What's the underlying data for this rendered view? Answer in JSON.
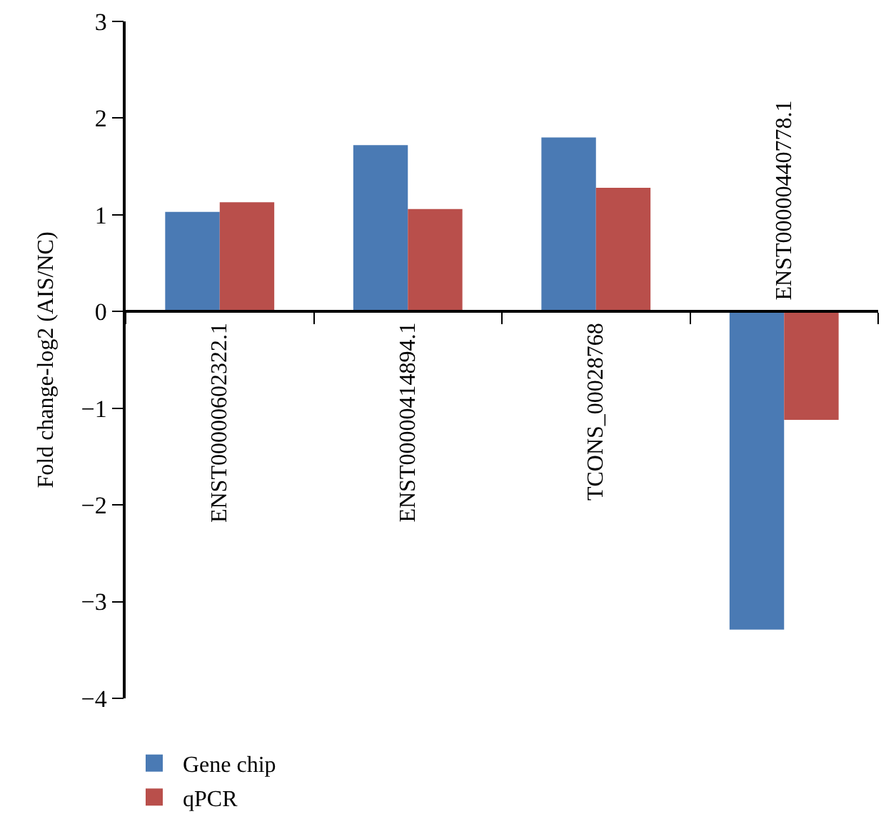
{
  "chart_data": {
    "type": "bar",
    "ylabel": "Fold change-log2 (AIS/NC)",
    "categories": [
      "ENST00000602322.1",
      "ENST00000414894.1",
      "TCONS_00028768",
      "ENST00000440778.1"
    ],
    "series": [
      {
        "name": "Gene chip",
        "color": "#4a7ab4",
        "values": [
          1.03,
          1.72,
          1.8,
          -3.29
        ]
      },
      {
        "name": "qPCR",
        "color": "#b94f4b",
        "values": [
          1.13,
          1.06,
          1.28,
          -1.12
        ]
      }
    ],
    "ylim": [
      -4,
      3
    ],
    "yticks": [
      {
        "value": -4,
        "label": "−4"
      },
      {
        "value": -3,
        "label": "−3"
      },
      {
        "value": -2,
        "label": "−2"
      },
      {
        "value": -1,
        "label": "−1"
      },
      0,
      1,
      2,
      3
    ],
    "legend": "bottom left"
  }
}
